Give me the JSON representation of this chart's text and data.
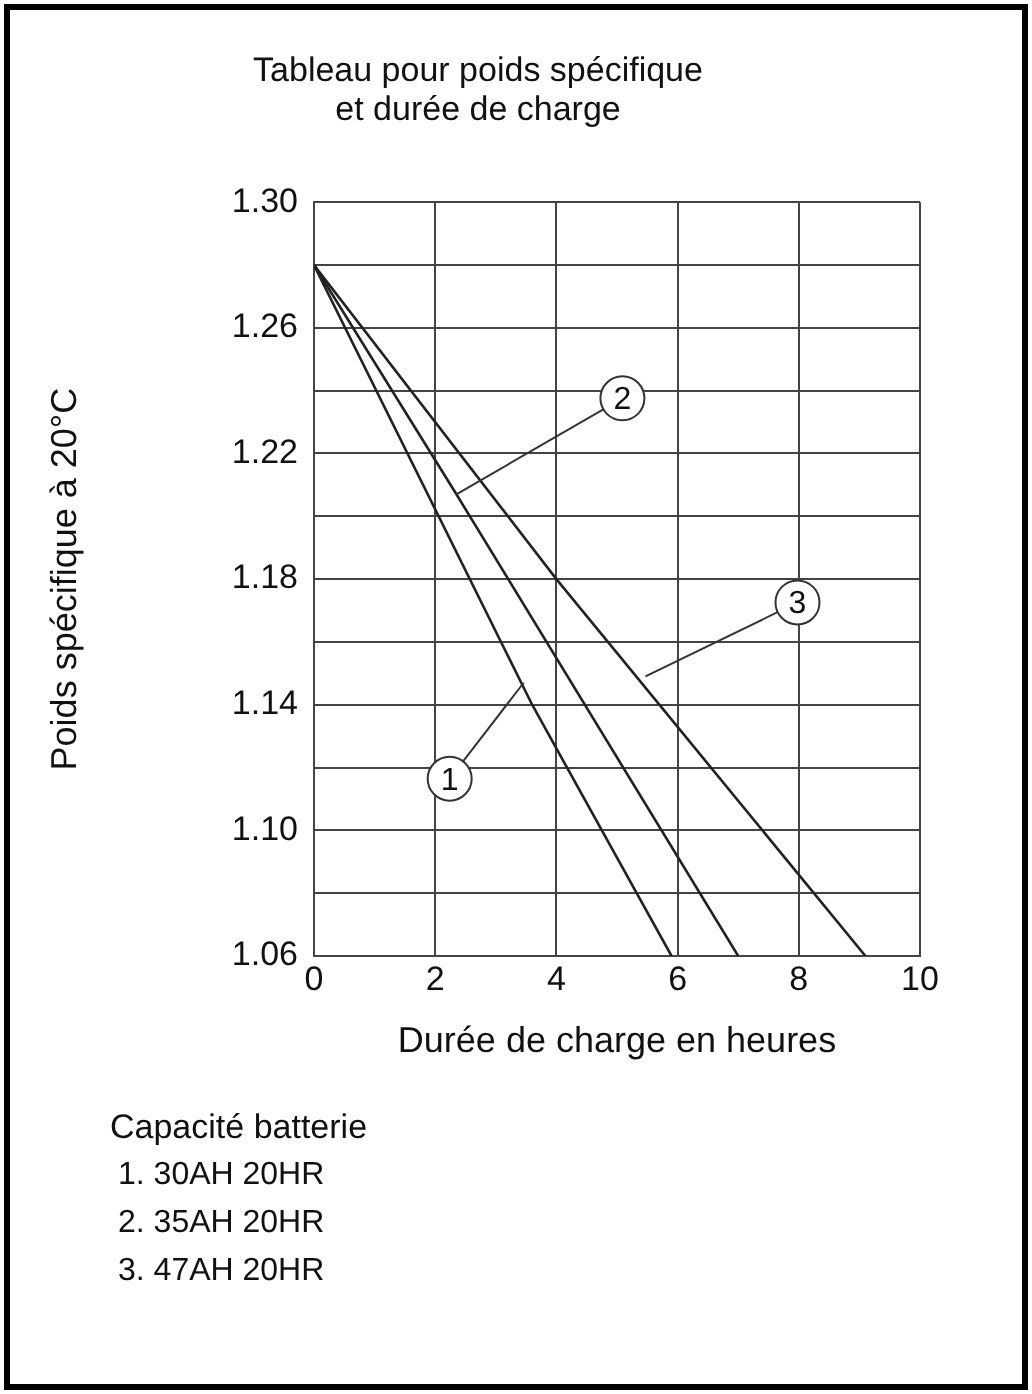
{
  "chart_data": {
    "type": "line",
    "title": "Tableau pour poids spécifique\net durée de charge",
    "xlabel": "Durée de charge en heures",
    "ylabel": "Poids spécifique à 20°C",
    "grid": true,
    "marker": "none",
    "line_style": "solid",
    "xlim": [
      0,
      10
    ],
    "xticks": [
      0,
      2,
      4,
      6,
      8,
      10
    ],
    "ylim": [
      1.06,
      1.3
    ],
    "yticks": [
      {
        "value": 1.06,
        "label": "1.06"
      },
      {
        "value": 1.08,
        "label": null
      },
      {
        "value": 1.1,
        "label": "1.10"
      },
      {
        "value": 1.12,
        "label": null
      },
      {
        "value": 1.14,
        "label": "1.14"
      },
      {
        "value": 1.16,
        "label": null
      },
      {
        "value": 1.18,
        "label": "1.18"
      },
      {
        "value": 1.2,
        "label": null
      },
      {
        "value": 1.22,
        "label": "1.22"
      },
      {
        "value": 1.24,
        "label": null
      },
      {
        "value": 1.26,
        "label": "1.26"
      },
      {
        "value": 1.28,
        "label": null
      },
      {
        "value": 1.3,
        "label": "1.30"
      }
    ],
    "series": [
      {
        "color": "#222222",
        "x": [
          0,
          3.6,
          5.9
        ],
        "values": [
          1.28,
          1.14,
          1.06
        ]
      },
      {
        "color": "#222222",
        "x": [
          0,
          2.35,
          7.0
        ],
        "values": [
          1.28,
          1.207,
          1.06
        ]
      },
      {
        "color": "#222222",
        "x": [
          0,
          4.0,
          9.1
        ],
        "values": [
          1.28,
          1.18,
          1.06
        ]
      }
    ],
    "annotations": [
      {
        "text": "1",
        "x": 3.46,
        "y": 1.147
      },
      {
        "text": "2",
        "x": 2.35,
        "y": 1.207
      },
      {
        "text": "3",
        "x": 5.47,
        "y": 1.149
      },
      "Capacité batterie",
      "1. 30AH 20HR",
      "2. 35AH 20HR",
      "3. 47AH 20HR"
    ]
  }
}
